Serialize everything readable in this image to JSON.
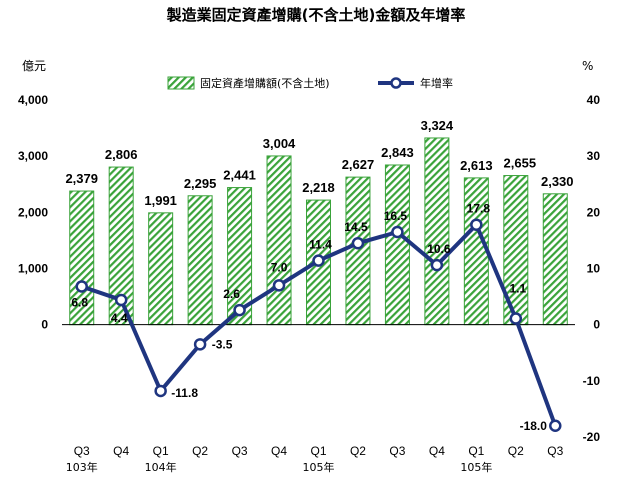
{
  "chart_data": {
    "type": "bar",
    "title": "製造業固定資產增購(不含土地)金額及年增率",
    "left_unit": "億元",
    "right_unit": "%",
    "categories": [
      "Q3",
      "Q4",
      "Q1",
      "Q2",
      "Q3",
      "Q4",
      "Q1",
      "Q2",
      "Q3",
      "Q4",
      "Q1",
      "Q2",
      "Q3"
    ],
    "year_labels": [
      {
        "index": 0,
        "label": "103年"
      },
      {
        "index": 2,
        "label": "104年"
      },
      {
        "index": 6,
        "label": "105年"
      },
      {
        "index": 10,
        "label": "105年"
      }
    ],
    "left_axis": {
      "min": 0,
      "max": 4000,
      "ticks": [
        "0",
        "1,000",
        "2,000",
        "3,000",
        "4,000"
      ],
      "tick_values": [
        0,
        1000,
        2000,
        3000,
        4000
      ]
    },
    "right_axis": {
      "min": -20,
      "max": 40,
      "ticks": [
        "-20",
        "-10",
        "0",
        "10",
        "20",
        "30",
        "40"
      ],
      "tick_values": [
        -20,
        -10,
        0,
        10,
        20,
        30,
        40
      ]
    },
    "series": [
      {
        "name": "固定資產增購額(不含土地)",
        "kind": "bar",
        "axis": "left",
        "values": [
          2379,
          2806,
          1991,
          2295,
          2441,
          3004,
          2218,
          2627,
          2843,
          3324,
          2613,
          2655,
          2330
        ],
        "labels": [
          "2,379",
          "2,806",
          "1,991",
          "2,295",
          "2,441",
          "3,004",
          "2,218",
          "2,627",
          "2,843",
          "3,324",
          "2,613",
          "2,655",
          "2,330"
        ],
        "color": "#3aa33a"
      },
      {
        "name": "年增率",
        "kind": "line",
        "axis": "right",
        "values": [
          6.8,
          4.4,
          -11.8,
          -3.5,
          2.6,
          7.0,
          11.4,
          14.5,
          16.5,
          10.6,
          17.8,
          1.1,
          -18.0
        ],
        "labels": [
          "6.8",
          "4.4",
          "-11.8",
          "-3.5",
          "2.6",
          "7.0",
          "11.4",
          "14.5",
          "16.5",
          "10.6",
          "17.8",
          "1.1",
          "-18.0"
        ],
        "color": "#1f3580"
      }
    ],
    "legend_position": "top",
    "grid": false
  }
}
